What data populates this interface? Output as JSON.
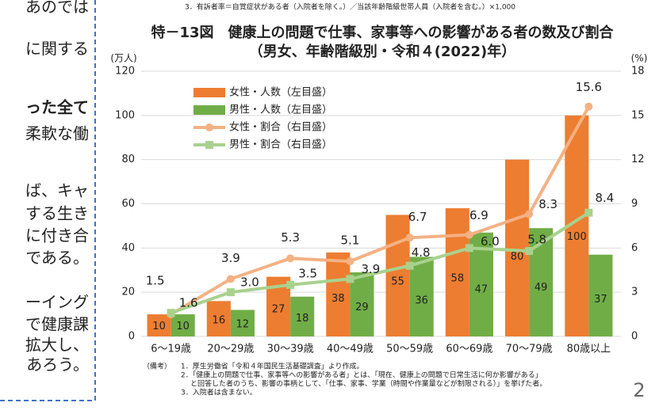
{
  "left_text": [
    {
      "text": "あのでは",
      "bold": false
    },
    {
      "text": "に関する",
      "bold": false
    },
    {
      "text": "った全て",
      "bold": true
    },
    {
      "text": "柔軟な働",
      "bold": false
    },
    {
      "text": "ば、キャ",
      "bold": false
    },
    {
      "text": "する生き",
      "bold": false
    },
    {
      "text": "に付き合",
      "bold": false
    },
    {
      "text": "である。",
      "bold": false
    },
    {
      "text": "ーイング",
      "bold": false
    },
    {
      "text": "で健康課",
      "bold": false
    },
    {
      "text": "拡大し、",
      "bold": false
    },
    {
      "text": "あろう。",
      "bold": false
    }
  ],
  "note_top": "3．有訴者率＝自覚症状がある者（入院者を除く。）／当該年齢階級世帯人員（入院者を含む。）×1,000",
  "chart_data": {
    "type": "bar",
    "title": "特－13図　健康上の問題で仕事、家事等への影響がある者の数及び割合",
    "subtitle": "（男女、年齢階級別・令和４(2022)年）",
    "ylabel": "(万人)",
    "y2label": "(%)",
    "categories": [
      "6～19歳",
      "20～29歳",
      "30～39歳",
      "40～49歳",
      "50～59歳",
      "60～69歳",
      "70～79歳",
      "80歳以上"
    ],
    "series": [
      {
        "name": "女性・人数（左目盛）",
        "type": "bar",
        "color": "#ed7d31",
        "values": [
          10,
          16,
          27,
          38,
          55,
          58,
          80,
          100
        ]
      },
      {
        "name": "男性・人数（左目盛）",
        "type": "bar",
        "color": "#70ad47",
        "values": [
          10,
          12,
          18,
          29,
          36,
          47,
          49,
          37
        ]
      },
      {
        "name": "女性・割合（右目盛）",
        "type": "line",
        "axis": "y2",
        "marker": "circle",
        "color": "#f4b183",
        "values": [
          1.5,
          3.9,
          5.3,
          5.1,
          6.7,
          6.9,
          8.3,
          15.6
        ]
      },
      {
        "name": "男性・割合（右目盛）",
        "type": "line",
        "axis": "y2",
        "marker": "square",
        "color": "#a9d18e",
        "values": [
          1.6,
          3,
          3.5,
          3.9,
          4.8,
          6,
          5.8,
          8.4
        ],
        "value_labels": [
          "1.6",
          "3.0",
          "3.5",
          "3.9",
          "4.8",
          "6.0",
          "5.8",
          "8.4"
        ]
      }
    ],
    "ylim": [
      0,
      120
    ],
    "yticks": [
      0,
      20,
      40,
      60,
      80,
      100,
      120
    ],
    "y2lim": [
      0,
      18
    ],
    "y2ticks": [
      0,
      3,
      6,
      9,
      12,
      15,
      18
    ],
    "grid": true,
    "legend": "upper-left"
  },
  "footnotes": {
    "label": "（備考）",
    "items": [
      "1．厚生労働省「令和４年国民生活基礎調査」より作成。",
      "2．「健康上の問題で仕事、家事等への影響がある者」とは、「現在、健康上の問題で日常生活に何か影響がある」",
      "と回答した者のうち、影響の事柄として、「仕事、家事、学業（時間や作業量などが制限される）」を挙げた者。",
      "3．入院者は含まない。"
    ]
  },
  "page_number": "2"
}
